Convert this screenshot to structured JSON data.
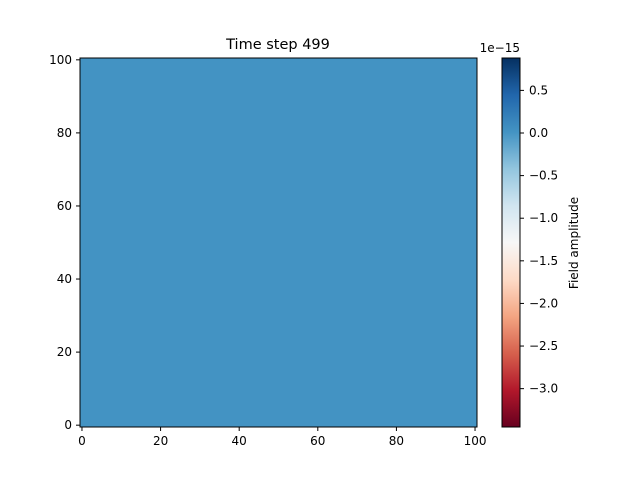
{
  "chart_data": {
    "type": "heatmap",
    "title": "Time step 499",
    "xlabel": "",
    "ylabel": "",
    "xlim": [
      -0.5,
      100.5
    ],
    "ylim": [
      -0.5,
      100.5
    ],
    "x_ticks": [
      0,
      20,
      40,
      60,
      80,
      100
    ],
    "y_ticks": [
      0,
      20,
      40,
      60,
      80,
      100
    ],
    "grid_shape": [
      101,
      101
    ],
    "field_value": 0.0,
    "field_color": "#4393c3",
    "grid": false,
    "colorbar": {
      "label": "Field amplitude",
      "colormap": "RdBu",
      "offset_text": "1e−15",
      "scale_exponent": -15,
      "vmin": -3.45,
      "vmax": 0.88,
      "ticks": [
        {
          "value": 0.5,
          "label": "0.5"
        },
        {
          "value": 0.0,
          "label": "0.0"
        },
        {
          "value": -0.5,
          "label": "−0.5"
        },
        {
          "value": -1.0,
          "label": "−1.0"
        },
        {
          "value": -1.5,
          "label": "−1.5"
        },
        {
          "value": -2.0,
          "label": "−2.0"
        },
        {
          "value": -2.5,
          "label": "−2.5"
        },
        {
          "value": -3.0,
          "label": "−3.0"
        }
      ]
    }
  }
}
